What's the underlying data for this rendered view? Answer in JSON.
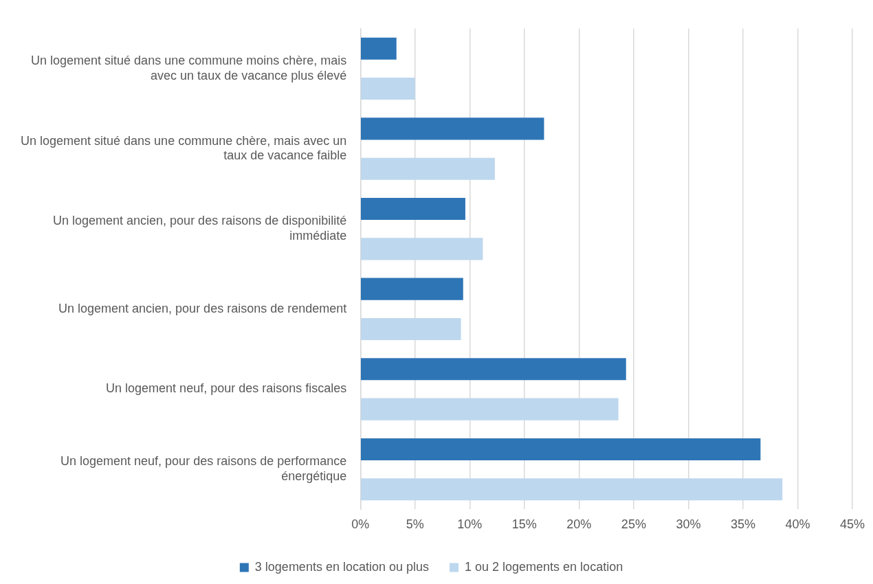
{
  "chart_data": {
    "type": "bar",
    "orientation": "horizontal",
    "categories": [
      "Un logement situé dans une commune moins chère, mais avec un taux de vacance plus élevé",
      "Un logement situé dans une commune chère, mais avec un taux de vacance faible",
      "Un logement ancien, pour des raisons de disponibilité immédiate",
      "Un logement ancien, pour des raisons de rendement",
      "Un logement neuf, pour des raisons fiscales",
      "Un logement neuf, pour des raisons de performance énergétique"
    ],
    "series": [
      {
        "name": "3 logements en location ou plus",
        "color": "#2e75b6",
        "values": [
          3.3,
          16.8,
          9.6,
          9.4,
          24.3,
          36.6
        ]
      },
      {
        "name": "1 ou 2 logements en location",
        "color": "#bdd7ee",
        "values": [
          5.0,
          12.3,
          11.2,
          9.2,
          23.6,
          38.6
        ]
      }
    ],
    "xlim": [
      0,
      45
    ],
    "xticks": [
      {
        "value": 0,
        "label": "0%"
      },
      {
        "value": 5,
        "label": "5%"
      },
      {
        "value": 10,
        "label": "10%"
      },
      {
        "value": 15,
        "label": "15%"
      },
      {
        "value": 20,
        "label": "20%"
      },
      {
        "value": 25,
        "label": "25%"
      },
      {
        "value": 30,
        "label": "30%"
      },
      {
        "value": 35,
        "label": "35%"
      },
      {
        "value": 40,
        "label": "40%"
      },
      {
        "value": 45,
        "label": "45%"
      }
    ],
    "grid": "x",
    "legend": "bottom"
  }
}
